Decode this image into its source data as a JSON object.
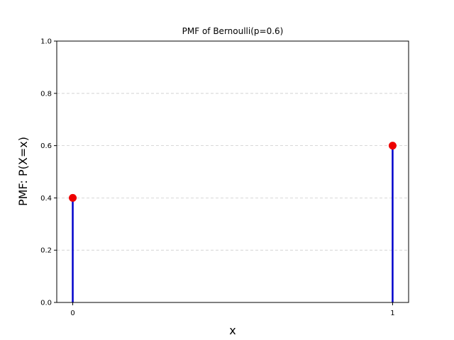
{
  "chart_data": {
    "type": "stem",
    "title": "PMF of Bernoulli(p=0.6)",
    "xlabel": "x",
    "ylabel": "PMF: P(X=x)",
    "x": [
      0,
      1
    ],
    "values": [
      0.4,
      0.6
    ],
    "x_ticks": [
      "0",
      "1"
    ],
    "y_ticks": [
      "0.0",
      "0.2",
      "0.4",
      "0.6",
      "0.8",
      "1.0"
    ],
    "xlim": [
      -0.05,
      1.05
    ],
    "ylim": [
      0,
      1.0
    ],
    "grid": "y-dashed",
    "stem_color": "#0000cc",
    "marker_color": "#ee0000",
    "grid_color": "#cccccc"
  }
}
